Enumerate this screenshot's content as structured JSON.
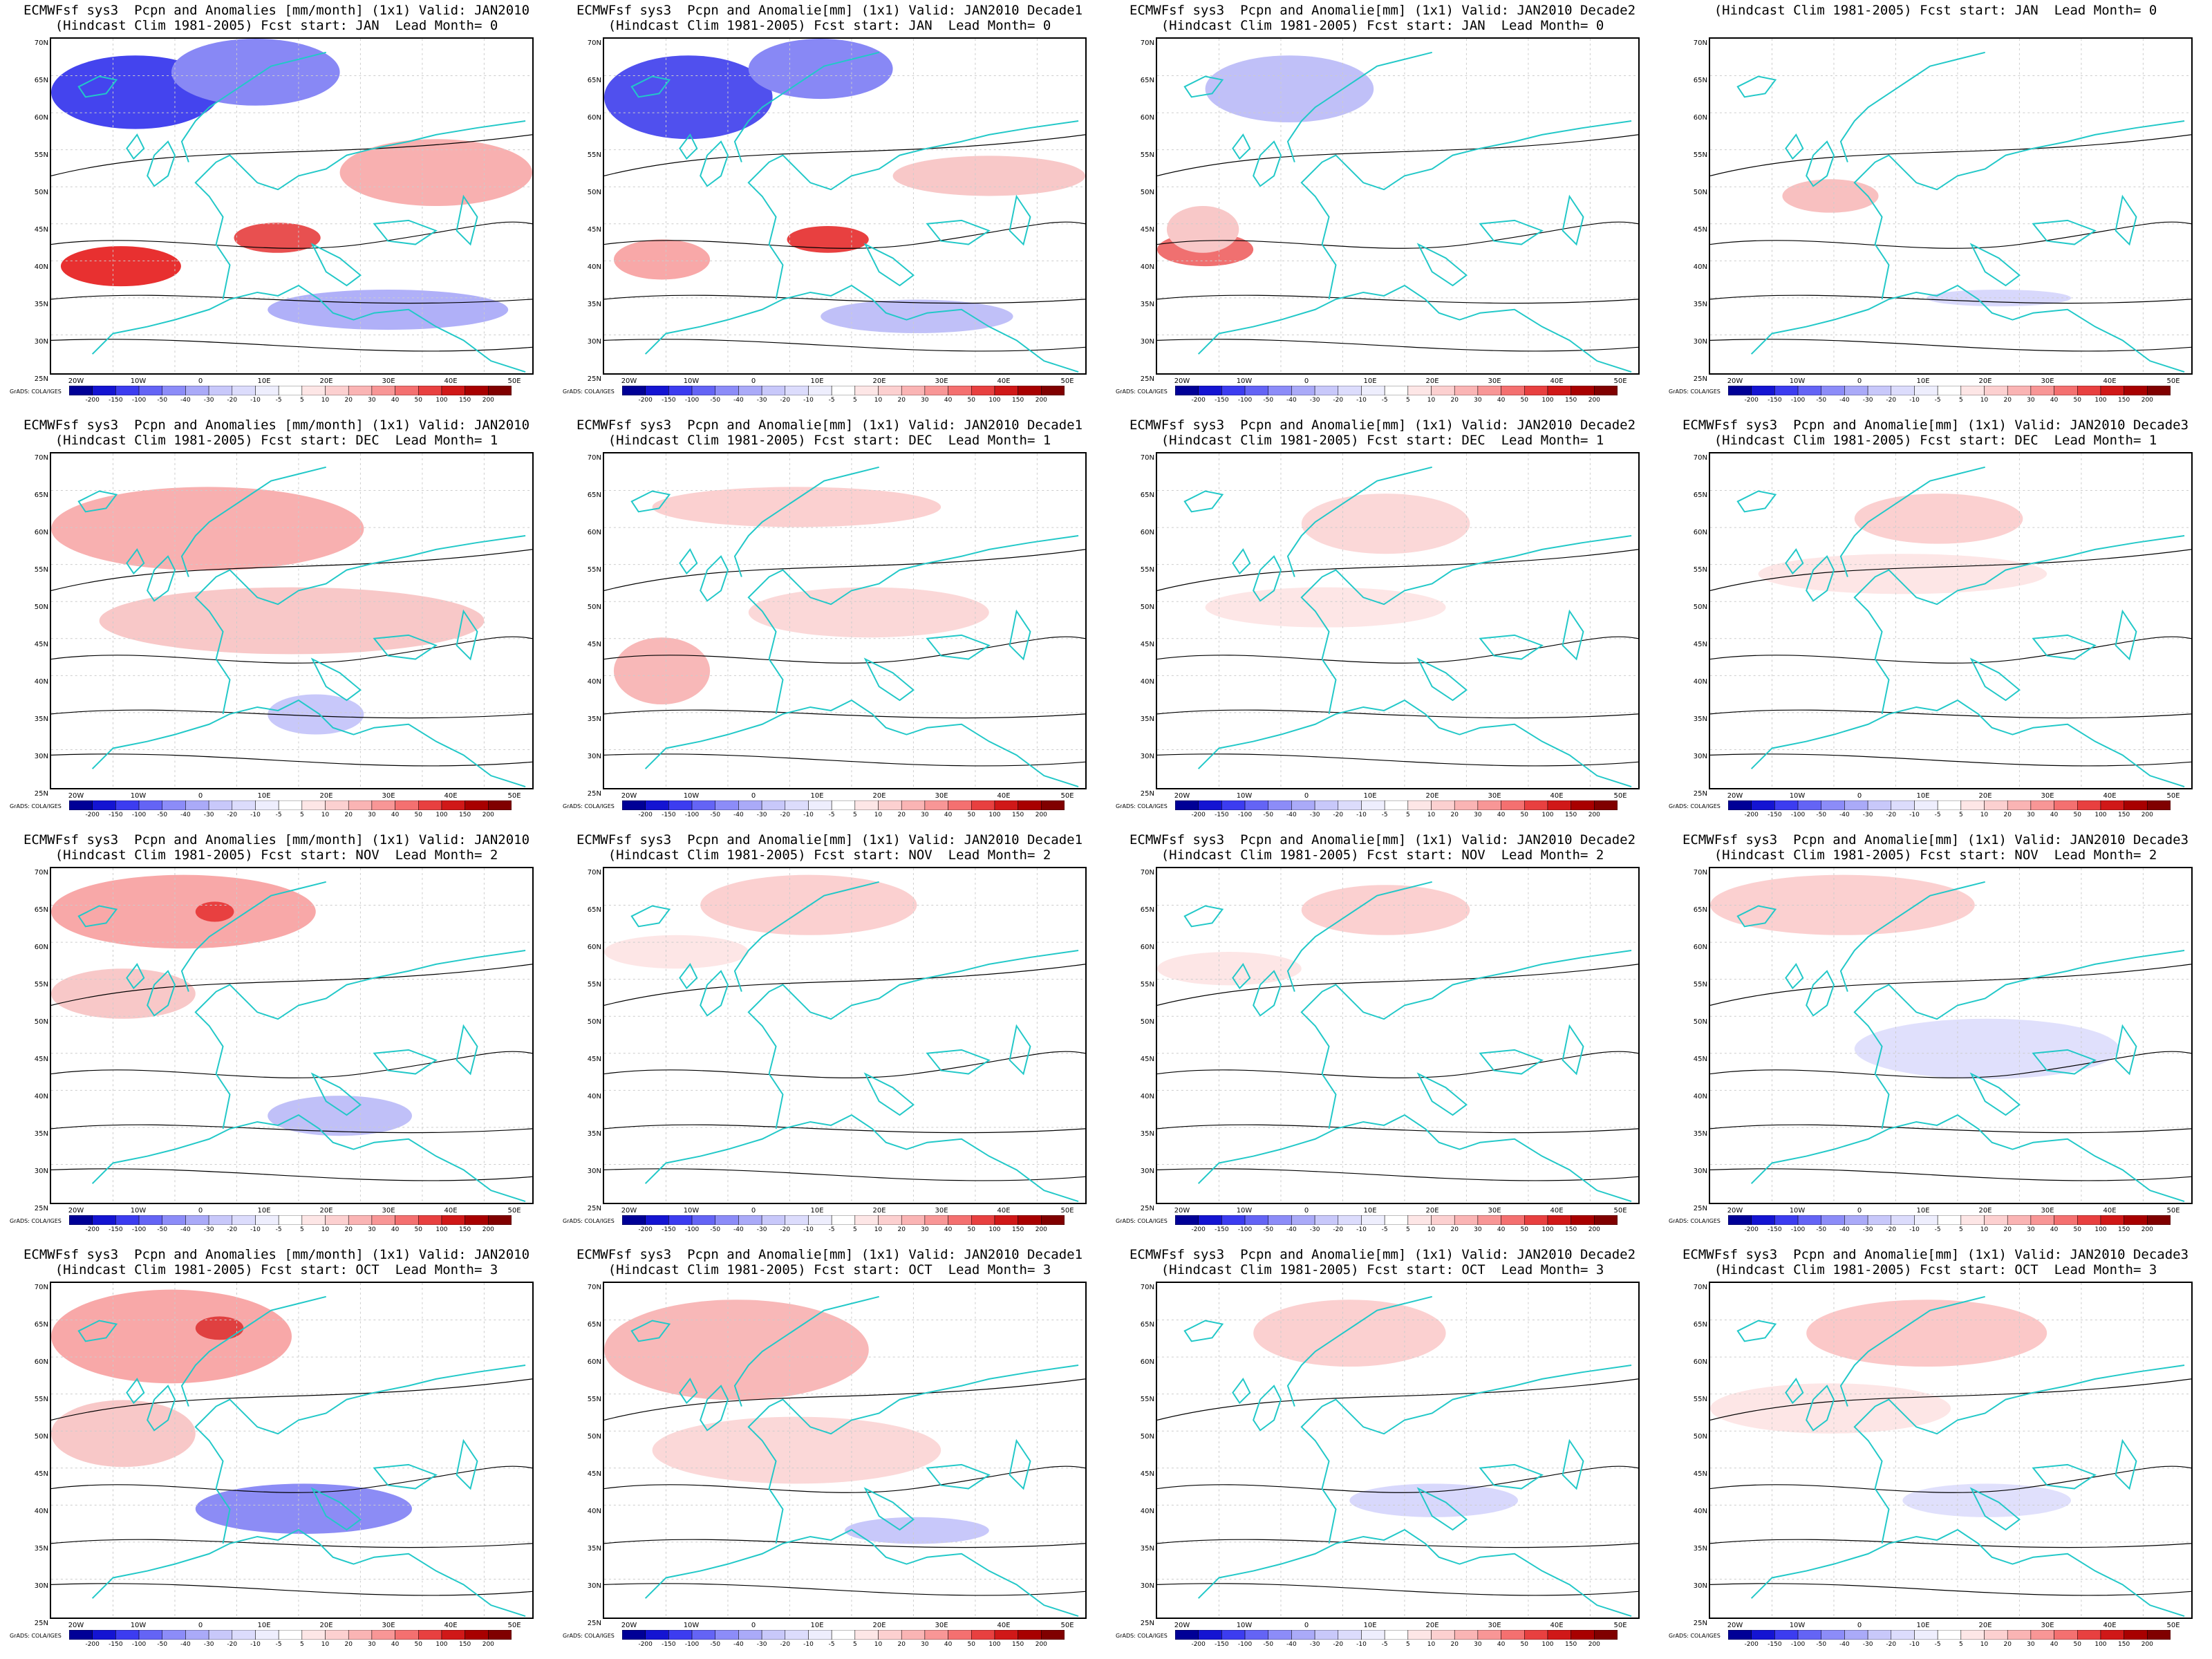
{
  "panels": [
    {
      "title1": "ECMWFsf sys3  Pcpn and Anomalies [mm/month] (1x1) Valid: JAN2010",
      "title2": "(Hindcast Clim 1981-2005) Fcst start: JAN  Lead Month= 0"
    },
    {
      "title1": "ECMWFsf sys3  Pcpn and Anomalie[mm] (1x1) Valid: JAN2010 Decade1",
      "title2": "(Hindcast Clim 1981-2005) Fcst start: JAN  Lead Month= 0"
    },
    {
      "title1": "ECMWFsf sys3  Pcpn and Anomalie[mm] (1x1) Valid: JAN2010 Decade2",
      "title2": "(Hindcast Clim 1981-2005) Fcst start: JAN  Lead Month= 0"
    },
    {
      "title1": "",
      "title2": "(Hindcast Clim 1981-2005) Fcst start: JAN  Lead Month= 0"
    },
    {
      "title1": "ECMWFsf sys3  Pcpn and Anomalies [mm/month] (1x1) Valid: JAN2010",
      "title2": "(Hindcast Clim 1981-2005) Fcst start: DEC  Lead Month= 1"
    },
    {
      "title1": "ECMWFsf sys3  Pcpn and Anomalie[mm] (1x1) Valid: JAN2010 Decade1",
      "title2": "(Hindcast Clim 1981-2005) Fcst start: DEC  Lead Month= 1"
    },
    {
      "title1": "ECMWFsf sys3  Pcpn and Anomalie[mm] (1x1) Valid: JAN2010 Decade2",
      "title2": "(Hindcast Clim 1981-2005) Fcst start: DEC  Lead Month= 1"
    },
    {
      "title1": "ECMWFsf sys3  Pcpn and Anomalie[mm] (1x1) Valid: JAN2010 Decade3",
      "title2": "(Hindcast Clim 1981-2005) Fcst start: DEC  Lead Month= 1"
    },
    {
      "title1": "ECMWFsf sys3  Pcpn and Anomalies [mm/month] (1x1) Valid: JAN2010",
      "title2": "(Hindcast Clim 1981-2005) Fcst start: NOV  Lead Month= 2"
    },
    {
      "title1": "ECMWFsf sys3  Pcpn and Anomalie[mm] (1x1) Valid: JAN2010 Decade1",
      "title2": "(Hindcast Clim 1981-2005) Fcst start: NOV  Lead Month= 2"
    },
    {
      "title1": "ECMWFsf sys3  Pcpn and Anomalie[mm] (1x1) Valid: JAN2010 Decade2",
      "title2": "(Hindcast Clim 1981-2005) Fcst start: NOV  Lead Month= 2"
    },
    {
      "title1": "ECMWFsf sys3  Pcpn and Anomalie[mm] (1x1) Valid: JAN2010 Decade3",
      "title2": "(Hindcast Clim 1981-2005) Fcst start: NOV  Lead Month= 2"
    },
    {
      "title1": "ECMWFsf sys3  Pcpn and Anomalies [mm/month] (1x1) Valid: JAN2010",
      "title2": "(Hindcast Clim 1981-2005) Fcst start: OCT  Lead Month= 3"
    },
    {
      "title1": "ECMWFsf sys3  Pcpn and Anomalie[mm] (1x1) Valid: JAN2010 Decade1",
      "title2": "(Hindcast Clim 1981-2005) Fcst start: OCT  Lead Month= 3"
    },
    {
      "title1": "ECMWFsf sys3  Pcpn and Anomalie[mm] (1x1) Valid: JAN2010 Decade2",
      "title2": "(Hindcast Clim 1981-2005) Fcst start: OCT  Lead Month= 3"
    },
    {
      "title1": "ECMWFsf sys3  Pcpn and Anomalie[mm] (1x1) Valid: JAN2010 Decade3",
      "title2": "(Hindcast Clim 1981-2005) Fcst start: OCT  Lead Month= 3"
    }
  ],
  "lat_labels": [
    "70N",
    "65N",
    "60N",
    "55N",
    "50N",
    "45N",
    "40N",
    "35N",
    "30N",
    "25N"
  ],
  "lon_labels": [
    "20W",
    "10W",
    "0",
    "10E",
    "20E",
    "30E",
    "40E",
    "50E"
  ],
  "colorbar_ticks": [
    "-200",
    "-150",
    "-100",
    "-50",
    "-40",
    "-30",
    "-20",
    "-10",
    "-5",
    "5",
    "10",
    "20",
    "30",
    "40",
    "50",
    "100",
    "150",
    "200"
  ],
  "colorbar_colors": [
    "#000096",
    "#1414d2",
    "#3c3cf0",
    "#6464f5",
    "#8c8cf8",
    "#aaaaf8",
    "#c8c8fa",
    "#dcdcfc",
    "#eeeefd",
    "#ffffff",
    "#fde6e6",
    "#fcd0d0",
    "#fab4b4",
    "#f89696",
    "#f47070",
    "#e84040",
    "#d01818",
    "#a80000",
    "#800000"
  ],
  "credit": "GrADS: COLA/IGES",
  "colors": {
    "coast": "#22c8c8",
    "contour": "#000000"
  }
}
